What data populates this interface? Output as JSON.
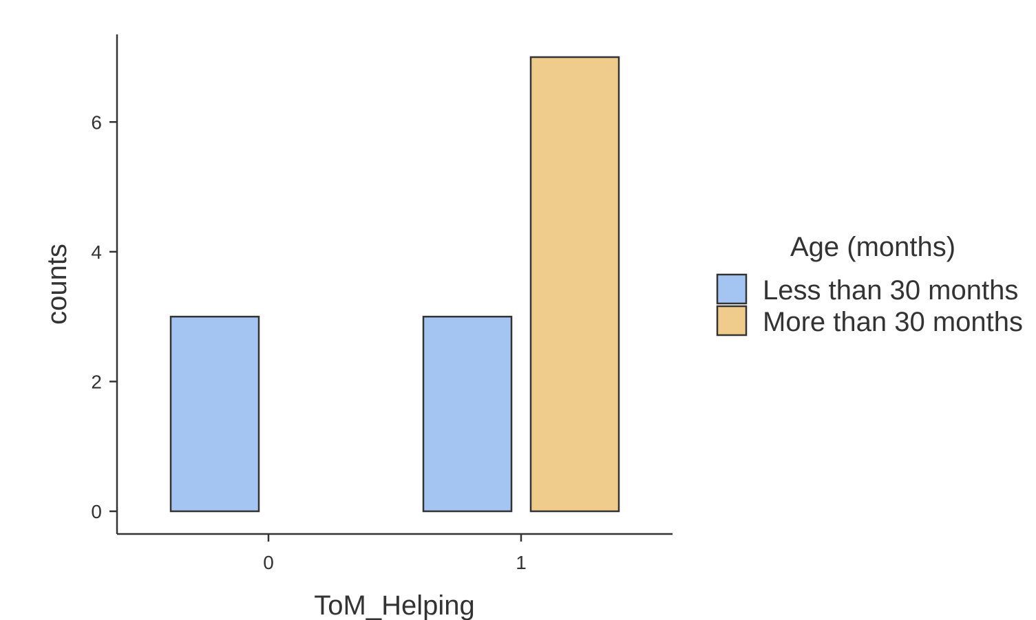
{
  "chart_data": {
    "type": "bar",
    "categories": [
      "0",
      "1"
    ],
    "series": [
      {
        "name": "Less than 30 months",
        "values": [
          3,
          3
        ],
        "color": "#A4C4F1"
      },
      {
        "name": "More than 30 months",
        "values": [
          0,
          7
        ],
        "color": "#EFCC8C"
      }
    ],
    "xlabel": "ToM_Helping",
    "ylabel": "counts",
    "yticks": [
      "0",
      "2",
      "4",
      "6"
    ],
    "ylim": [
      -0.35,
      7.35
    ],
    "legend": {
      "title": "Age (months)",
      "position": "right"
    },
    "grid": false,
    "outline_color": "#333333"
  }
}
